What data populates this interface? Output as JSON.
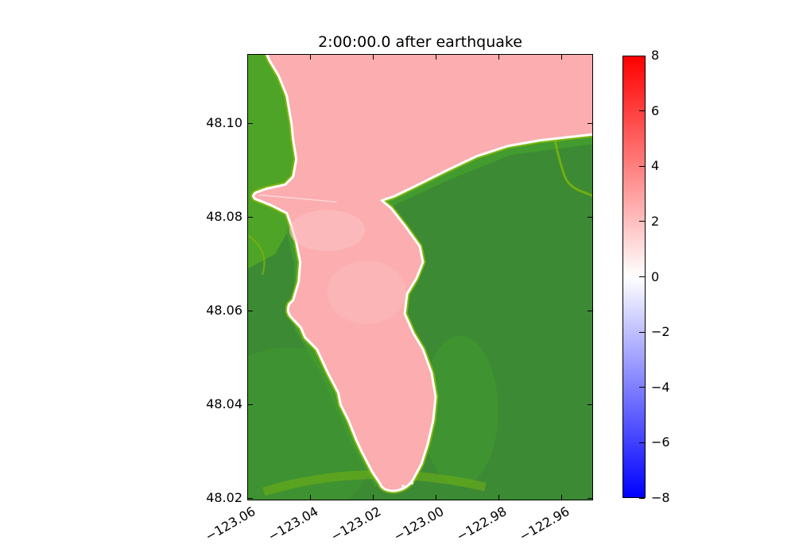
{
  "figure": {
    "title": "2:00:00.0 after earthquake"
  },
  "chart_data": {
    "type": "heatmap",
    "title": "2:00:00.0 after earthquake",
    "xlabel": "",
    "ylabel": "",
    "x_tick_labels": [
      "−123.06",
      "−123.04",
      "−123.02",
      "−123.00",
      "−122.98",
      "−122.96"
    ],
    "y_tick_labels": [
      "48.10",
      "48.08",
      "48.06",
      "48.04",
      "48.02"
    ],
    "x_range": [
      -123.061,
      -122.951
    ],
    "y_range": [
      48.019,
      48.115
    ],
    "grid": false,
    "colorbar": {
      "tick_labels": [
        "8",
        "6",
        "4",
        "2",
        "0",
        "−2",
        "−4",
        "−6",
        "−8"
      ],
      "range": [
        -8,
        8
      ],
      "orientation": "vertical",
      "position": "right",
      "colormap": "blue-white-red"
    },
    "regions": [
      {
        "name": "water (strait and bay)",
        "approx_value": 2.2,
        "color": "#fbadaf"
      },
      {
        "name": "shoreline cells",
        "approx_value": 0,
        "color": "#ffffff"
      },
      {
        "name": "land (terrain shading, masked from colormap)",
        "approx_value": null,
        "color": "#3c8a33"
      }
    ]
  },
  "colors": {
    "background": "#ffffff",
    "frame": "#000000",
    "water-pink": "#fbadaf",
    "water-pale": "#fdc6c7",
    "shore-white": "#ffffff",
    "land-dark": "#3c8a33",
    "land-medium": "#429c2e",
    "land-bright": "#4fa527",
    "land-light": "#76b310",
    "shore-fringe": "#86b90f",
    "colorbar-top": "#ff0000",
    "colorbar-mid": "#ffffff",
    "colorbar-bottom": "#0000ff"
  }
}
